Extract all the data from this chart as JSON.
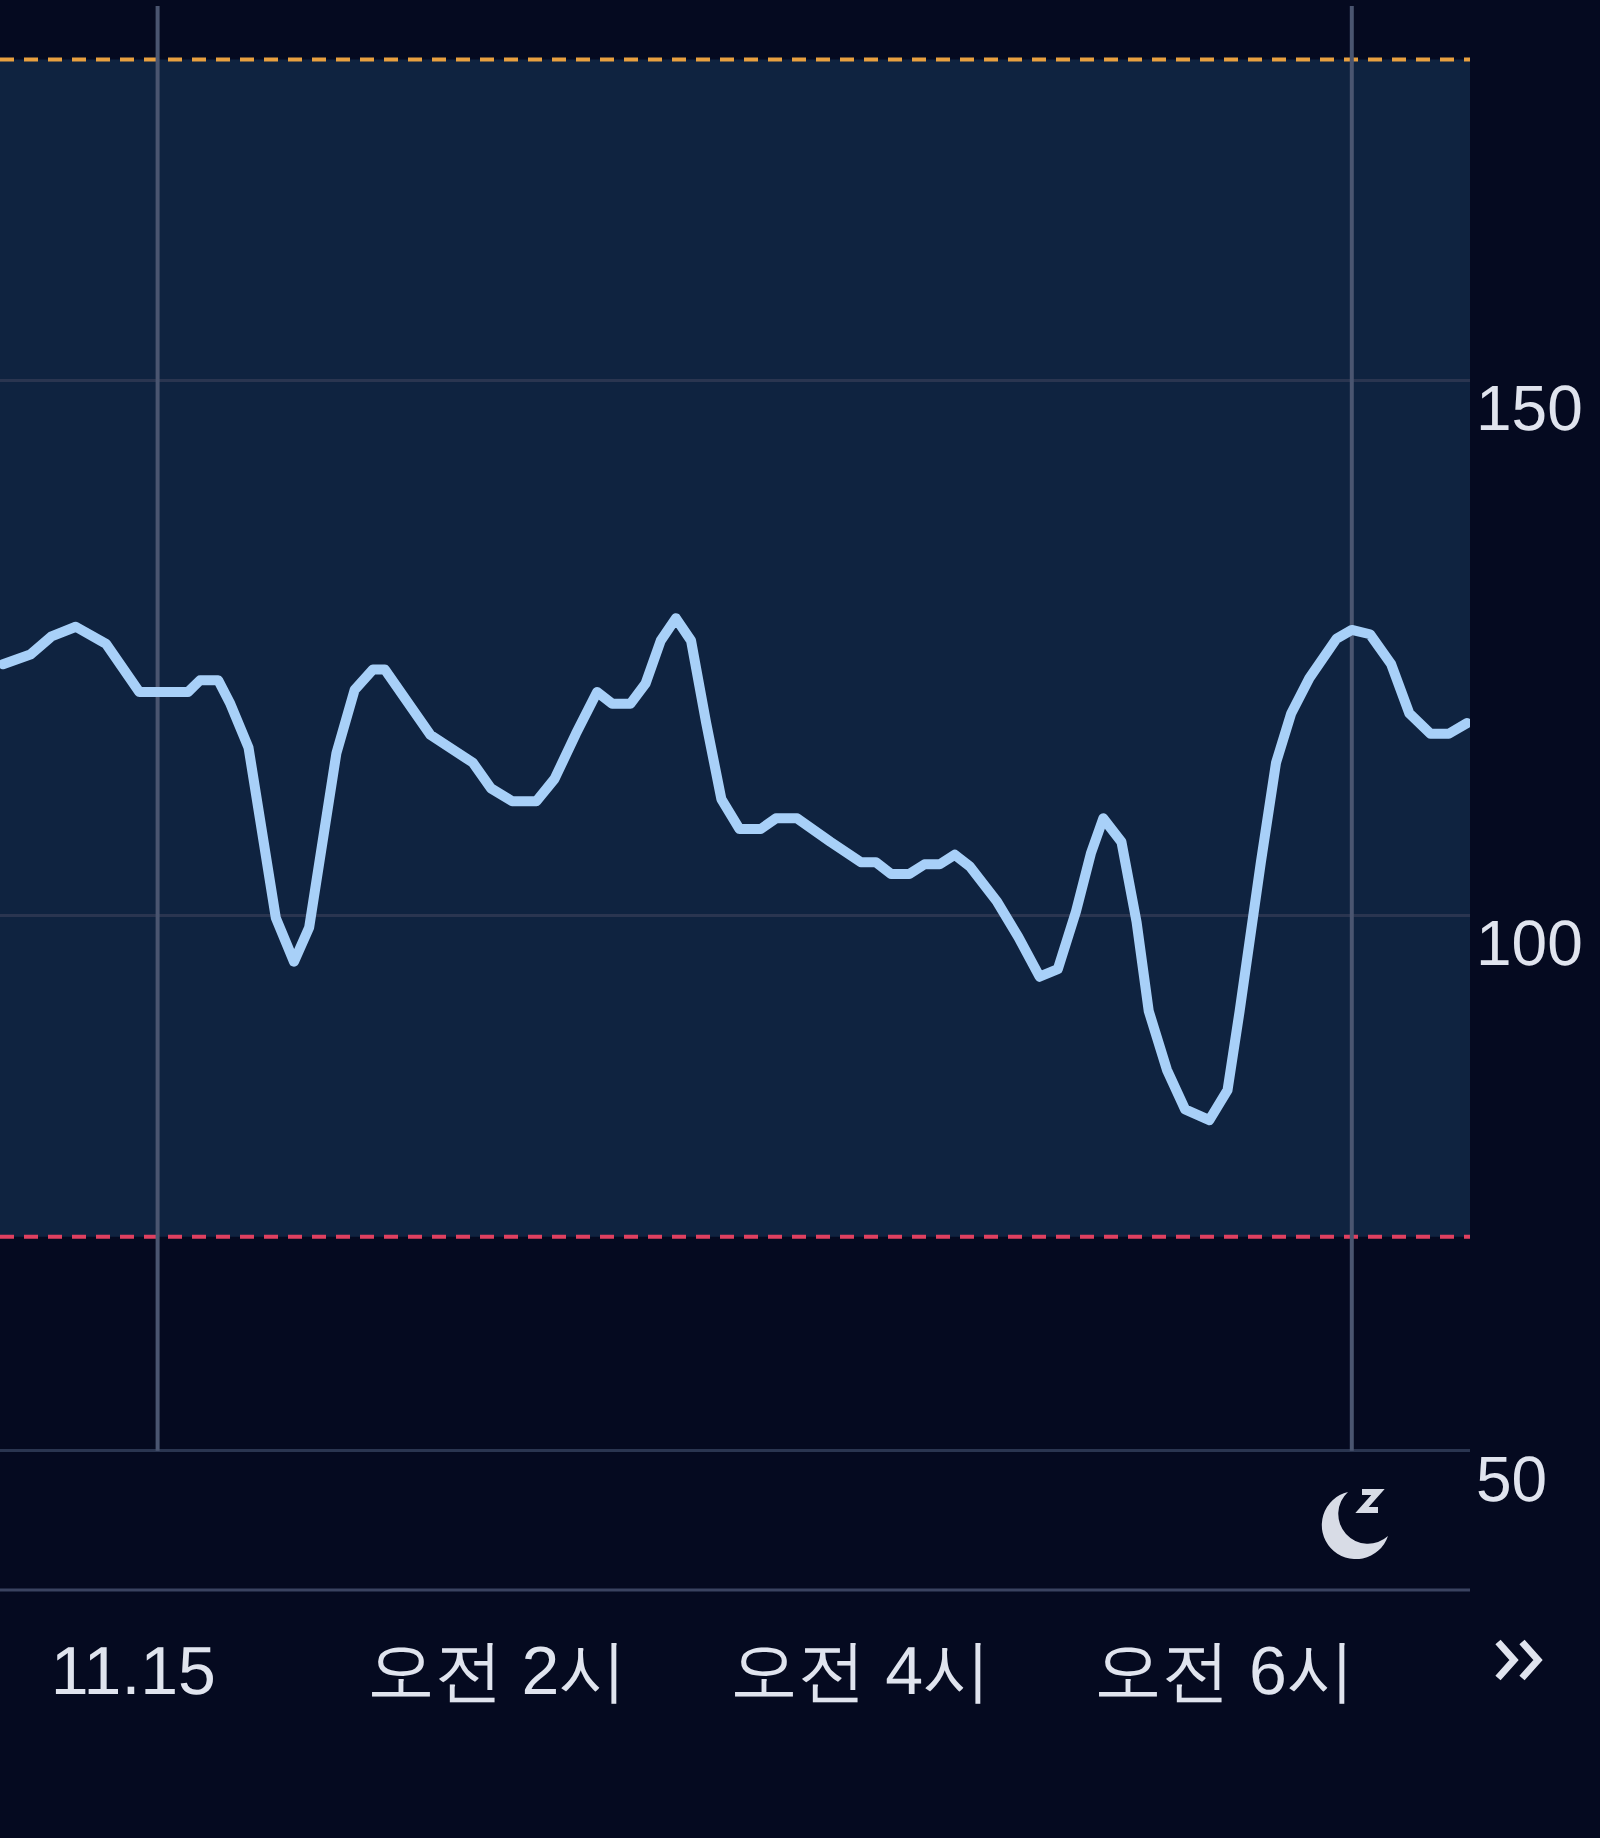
{
  "chart_data": {
    "type": "line",
    "x": [
      "--11-14T23:17",
      "--11-14T23:26",
      "--11-14T23:33",
      "--11-14T23:41",
      "--11-14T23:51",
      "--11-15T00:02",
      "--11-15T00:18",
      "--11-15T00:22",
      "--11-15T00:28",
      "--11-15T00:32",
      "--11-15T00:38",
      "--11-15T00:47",
      "--11-15T00:53",
      "--11-15T00:58",
      "--11-15T01:07",
      "--11-15T01:13",
      "--11-15T01:19",
      "--11-15T01:23",
      "--11-15T01:38",
      "--11-15T01:52",
      "--11-15T01:58",
      "--11-15T02:05",
      "--11-15T02:13",
      "--11-15T02:19",
      "--11-15T02:26",
      "--11-15T02:33",
      "--11-15T02:38",
      "--11-15T02:44",
      "--11-15T02:49",
      "--11-15T02:54",
      "--11-15T02:59",
      "--11-15T03:04",
      "--11-15T03:09",
      "--11-15T03:14",
      "--11-15T03:20",
      "--11-15T03:27",
      "--11-15T03:32",
      "--11-15T03:39",
      "--11-15T03:50",
      "--11-15T04:00",
      "--11-15T04:05",
      "--11-15T04:10",
      "--11-15T04:16",
      "--11-15T04:21",
      "--11-15T04:26",
      "--11-15T04:31",
      "--11-15T04:36",
      "--11-15T04:45",
      "--11-15T04:52",
      "--11-15T04:59",
      "--11-15T05:05",
      "--11-15T05:11",
      "--11-15T05:16",
      "--11-15T05:20",
      "--11-15T05:26",
      "--11-15T05:31",
      "--11-15T05:35",
      "--11-15T05:41",
      "--11-15T05:47",
      "--11-15T05:55",
      "--11-15T06:01",
      "--11-15T06:05",
      "--11-15T06:12",
      "--11-15T06:17",
      "--11-15T06:22",
      "--11-15T06:28",
      "--11-15T06:37",
      "--11-15T06:42",
      "--11-15T06:48",
      "--11-15T06:55",
      "--11-15T07:01",
      "--11-15T07:08",
      "--11-15T07:14",
      "--11-15T07:20"
    ],
    "series": [
      {
        "color": "#a8d0f8",
        "values": [
          123.5,
          124.4,
          126.1,
          127,
          125.4,
          120.9,
          120.9,
          122,
          122,
          119.8,
          115.7,
          99.8,
          95.7,
          98.9,
          115.2,
          121.1,
          123,
          123,
          116.9,
          114.3,
          111.9,
          110.7,
          110.7,
          112.8,
          117,
          120.9,
          119.8,
          119.8,
          121.7,
          125.7,
          127.8,
          125.7,
          118,
          110.9,
          108.1,
          108.1,
          109.1,
          109.1,
          106.9,
          105,
          105,
          103.9,
          103.9,
          104.8,
          104.8,
          105.7,
          104.6,
          101.3,
          98,
          94.3,
          95,
          100.4,
          105.9,
          109.1,
          106.9,
          99.4,
          91.1,
          85.6,
          81.9,
          80.9,
          83.7,
          91.1,
          105,
          114.3,
          118.9,
          122.2,
          125.9,
          126.7,
          126.3,
          123.5,
          118.9,
          117,
          117,
          118
        ]
      }
    ],
    "xlim": [
      "--11-14T23:16",
      "--11-15T07:21"
    ],
    "xticks": [
      {
        "value": "--11-15T00:00",
        "label": "11.15"
      },
      {
        "value": "--11-15T02:00",
        "label": "오전 2시"
      },
      {
        "value": "--11-15T04:00",
        "label": "오전 4시"
      },
      {
        "value": "--11-15T06:00",
        "label": "오전 6시"
      }
    ],
    "ylim": [
      37,
      185
    ],
    "yticks": [
      50,
      100,
      150
    ],
    "bands": [
      {
        "axis": "y",
        "from": 70,
        "to": 180,
        "color": "#0f2340"
      }
    ],
    "ref_lines": [
      {
        "axis": "y",
        "value": 180,
        "color": "#e8a040",
        "line_style": "dashed"
      },
      {
        "axis": "y",
        "value": 70,
        "color": "#e04060",
        "line_style": "dashed"
      },
      {
        "axis": "x",
        "value": "--11-15T00:08",
        "color": "#4a5570",
        "line_style": "solid"
      },
      {
        "axis": "x",
        "value": "--11-15T06:42",
        "color": "#4a5570",
        "line_style": "solid"
      }
    ],
    "grid": "y",
    "legend": false,
    "marker": "none",
    "line_style": "solid"
  }
}
